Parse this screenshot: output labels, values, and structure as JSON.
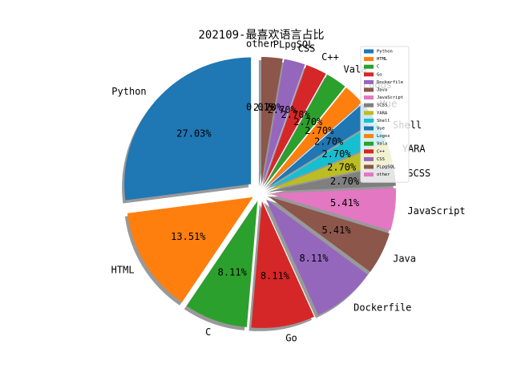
{
  "chart_data": {
    "type": "pie",
    "title": "202109-最喜欢语言占比",
    "categories": [
      "Python",
      "HTML",
      "C",
      "Go",
      "Dockerfile",
      "Java",
      "JavaScript",
      "SCSS",
      "YARA",
      "Shell",
      "Vue",
      "Logos",
      "Vala",
      "C++",
      "CSS",
      "PLpgSQL",
      "other"
    ],
    "values": [
      27.03,
      13.51,
      8.11,
      8.11,
      8.11,
      5.41,
      5.41,
      2.7,
      2.7,
      2.7,
      2.7,
      2.7,
      2.7,
      2.7,
      2.7,
      2.7,
      0.01
    ],
    "value_labels": [
      "27.03%",
      "13.51%",
      "8.11%",
      "8.11%",
      "8.11%",
      "5.41%",
      "5.41%",
      "2.70%",
      "2.70%",
      "2.70%",
      "2.70%",
      "2.70%",
      "2.70%",
      "2.70%",
      "2.70%",
      "2.70%",
      "0.01%"
    ],
    "colors": [
      "#1f77b4",
      "#ff7f0e",
      "#2ca02c",
      "#d62728",
      "#9467bd",
      "#8c564b",
      "#e377c2",
      "#7f7f7f",
      "#bcbd22",
      "#17becf",
      "#1f77b4",
      "#ff7f0e",
      "#2ca02c",
      "#d62728",
      "#9467bd",
      "#8c564b",
      "#e377c2"
    ],
    "legend": "upper right",
    "shadow": true
  }
}
